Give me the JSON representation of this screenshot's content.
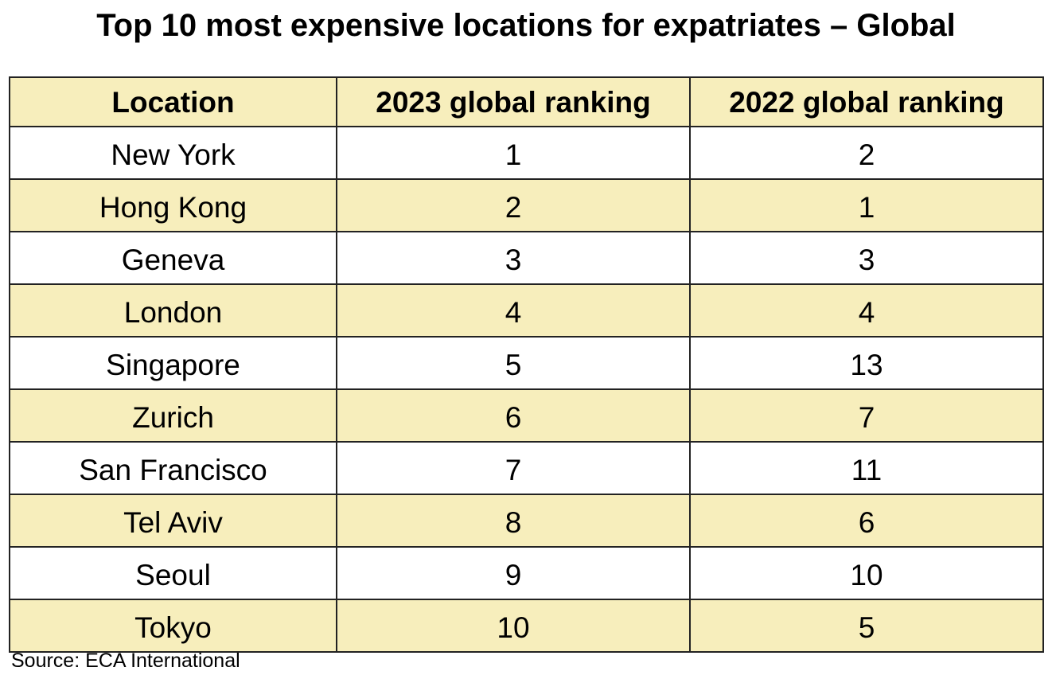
{
  "title": "Top 10 most expensive locations for expatriates – Global",
  "colors": {
    "header_fill": "#f7eebc",
    "stripe_fill": "#f7eebc",
    "plain_fill": "#ffffff",
    "border": "#222222"
  },
  "table": {
    "headers": [
      "Location",
      "2023 global ranking",
      "2022 global ranking"
    ],
    "rows": [
      [
        "New York",
        "1",
        "2"
      ],
      [
        "Hong Kong",
        "2",
        "1"
      ],
      [
        "Geneva",
        "3",
        "3"
      ],
      [
        "London",
        "4",
        "4"
      ],
      [
        "Singapore",
        "5",
        "13"
      ],
      [
        "Zurich",
        "6",
        "7"
      ],
      [
        "San Francisco",
        "7",
        "11"
      ],
      [
        "Tel Aviv",
        "8",
        "6"
      ],
      [
        "Seoul",
        "9",
        "10"
      ],
      [
        "Tokyo",
        "10",
        "5"
      ]
    ]
  },
  "source": "Source: ECA International"
}
